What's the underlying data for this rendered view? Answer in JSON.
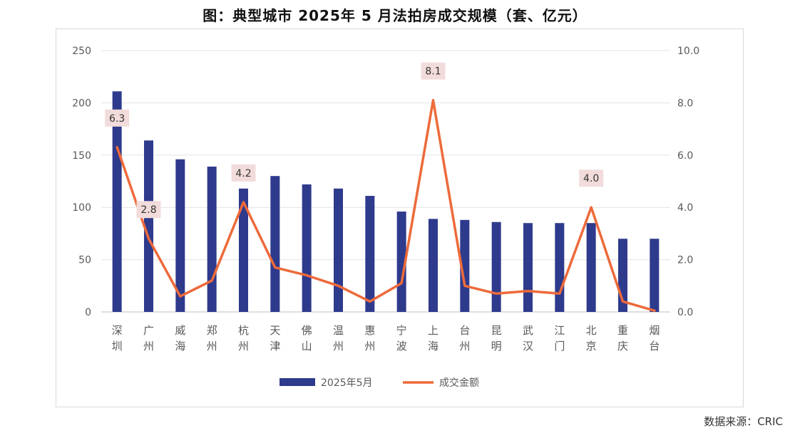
{
  "title": "图：典型城市 2025年 5 月法拍房成交规模（套、亿元）",
  "source": "数据来源：CRIC",
  "chart_data": {
    "type": "bar",
    "categories": [
      "深圳",
      "广州",
      "威海",
      "郑州",
      "杭州",
      "天津",
      "佛山",
      "温州",
      "惠州",
      "宁波",
      "上海",
      "台州",
      "昆明",
      "武汉",
      "江门",
      "北京",
      "重庆",
      "烟台"
    ],
    "series": [
      {
        "name": "2025年5月",
        "type": "bar",
        "axis": "left",
        "color": "#2E3A8C",
        "values": [
          211,
          164,
          146,
          139,
          118,
          130,
          122,
          118,
          111,
          96,
          89,
          88,
          86,
          85,
          85,
          85,
          70,
          70
        ]
      },
      {
        "name": "成交金额",
        "type": "line",
        "axis": "right",
        "color": "#ED6A3A",
        "values": [
          6.3,
          2.8,
          0.6,
          1.2,
          4.2,
          1.7,
          1.4,
          1.0,
          0.4,
          1.1,
          8.1,
          1.0,
          0.7,
          0.8,
          0.7,
          4.0,
          0.4,
          0.05
        ]
      }
    ],
    "data_labels": [
      {
        "index": 0,
        "text": "6.3"
      },
      {
        "index": 1,
        "text": "2.8"
      },
      {
        "index": 4,
        "text": "4.2"
      },
      {
        "index": 10,
        "text": "8.1"
      },
      {
        "index": 15,
        "text": "4.0"
      }
    ],
    "y_left": {
      "min": 0,
      "max": 250,
      "ticks": [
        "0",
        "50",
        "100",
        "150",
        "200",
        "250"
      ]
    },
    "y_right": {
      "min": 0,
      "max": 10,
      "ticks": [
        "0.0",
        "2.0",
        "4.0",
        "6.0",
        "8.0",
        "10.0"
      ]
    },
    "grid": true,
    "legend_position": "bottom"
  }
}
